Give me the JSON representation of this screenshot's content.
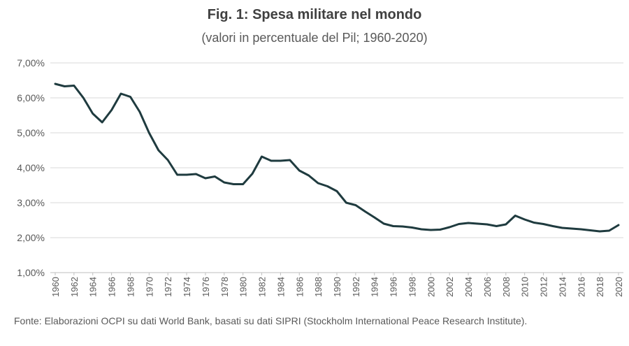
{
  "chart_data": {
    "type": "line",
    "title": "Fig. 1: Spesa militare nel mondo",
    "subtitle": "(valori in percentuale del Pil; 1960-2020)",
    "xlabel": "",
    "ylabel": "",
    "ylim": [
      1.0,
      7.0
    ],
    "y_ticks": [
      "1,00%",
      "2,00%",
      "3,00%",
      "4,00%",
      "5,00%",
      "6,00%",
      "7,00%"
    ],
    "x_tick_labels": [
      "1960",
      "1962",
      "1964",
      "1966",
      "1968",
      "1970",
      "1972",
      "1974",
      "1976",
      "1978",
      "1980",
      "1982",
      "1984",
      "1986",
      "1988",
      "1990",
      "1992",
      "1994",
      "1996",
      "1998",
      "2000",
      "2002",
      "2004",
      "2006",
      "2008",
      "2010",
      "2012",
      "2014",
      "2016",
      "2018",
      "2020"
    ],
    "x": [
      1960,
      1961,
      1962,
      1963,
      1964,
      1965,
      1966,
      1967,
      1968,
      1969,
      1970,
      1971,
      1972,
      1973,
      1974,
      1975,
      1976,
      1977,
      1978,
      1979,
      1980,
      1981,
      1982,
      1983,
      1984,
      1985,
      1986,
      1987,
      1988,
      1989,
      1990,
      1991,
      1992,
      1993,
      1994,
      1995,
      1996,
      1997,
      1998,
      1999,
      2000,
      2001,
      2002,
      2003,
      2004,
      2005,
      2006,
      2007,
      2008,
      2009,
      2010,
      2011,
      2012,
      2013,
      2014,
      2015,
      2016,
      2017,
      2018,
      2019,
      2020
    ],
    "series": [
      {
        "name": "Spesa militare (% del Pil)",
        "color": "#1f3b3f",
        "values": [
          6.4,
          6.33,
          6.35,
          6.0,
          5.55,
          5.3,
          5.65,
          6.12,
          6.03,
          5.6,
          5.0,
          4.5,
          4.22,
          3.8,
          3.8,
          3.82,
          3.7,
          3.75,
          3.58,
          3.53,
          3.53,
          3.83,
          4.32,
          4.2,
          4.2,
          4.22,
          3.92,
          3.78,
          3.56,
          3.47,
          3.33,
          3.0,
          2.93,
          2.75,
          2.58,
          2.4,
          2.33,
          2.32,
          2.29,
          2.24,
          2.22,
          2.23,
          2.3,
          2.39,
          2.42,
          2.4,
          2.38,
          2.33,
          2.38,
          2.63,
          2.52,
          2.43,
          2.39,
          2.33,
          2.28,
          2.26,
          2.24,
          2.21,
          2.18,
          2.2,
          2.36
        ]
      }
    ],
    "grid": true,
    "legend": "none"
  },
  "source_note": "Fonte: Elaborazioni OCPI su dati World Bank, basati su dati SIPRI  (Stockholm International Peace Research Institute)."
}
